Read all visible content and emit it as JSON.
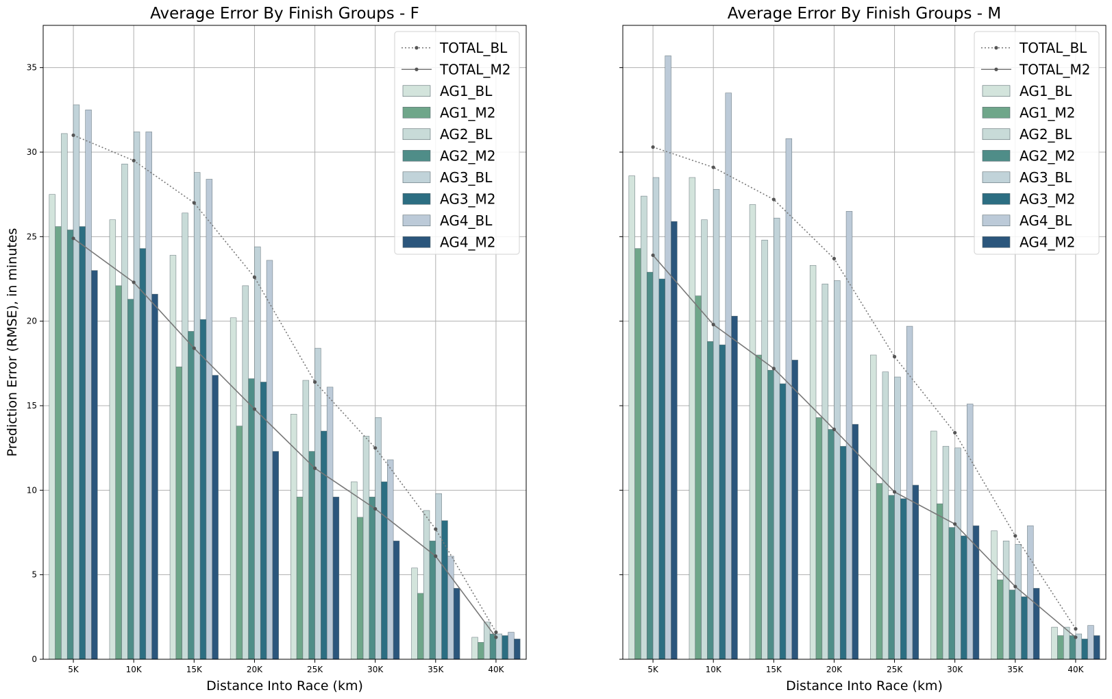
{
  "colors": {
    "AG1_BL": "#d3e4dc",
    "AG1_M2": "#6fa68a",
    "AG2_BL": "#c8dbd8",
    "AG2_M2": "#4f8d88",
    "AG3_BL": "#c1d3d9",
    "AG3_M2": "#2c6e82",
    "AG4_BL": "#bccad8",
    "AG4_M2": "#2b567c",
    "line": "#777777",
    "grid": "#b0b0b0"
  },
  "chart_data": [
    {
      "type": "bar",
      "title": "Average Error By Finish Groups - F",
      "xlabel": "Distance Into Race (km)",
      "ylabel": "Prediction Error (RMSE), in minutes",
      "categories": [
        "5K",
        "10K",
        "15K",
        "20K",
        "25K",
        "30K",
        "35K",
        "40K"
      ],
      "ylim": [
        0,
        37.5
      ],
      "yticks": [
        0,
        5,
        10,
        15,
        20,
        25,
        30,
        35
      ],
      "grid": true,
      "legend": "top-right",
      "series": [
        {
          "name": "AG1_BL",
          "values": [
            27.5,
            26.0,
            23.9,
            20.2,
            14.5,
            10.5,
            5.4,
            1.3
          ]
        },
        {
          "name": "AG1_M2",
          "values": [
            25.6,
            22.1,
            17.3,
            13.8,
            9.6,
            8.4,
            3.9,
            1.0
          ]
        },
        {
          "name": "AG2_BL",
          "values": [
            31.1,
            29.3,
            26.4,
            22.1,
            16.5,
            13.2,
            8.8,
            2.2
          ]
        },
        {
          "name": "AG2_M2",
          "values": [
            25.4,
            21.3,
            19.4,
            16.6,
            12.3,
            9.6,
            7.0,
            1.5
          ]
        },
        {
          "name": "AG3_BL",
          "values": [
            32.8,
            31.2,
            28.8,
            24.4,
            18.4,
            14.3,
            9.8,
            1.5
          ]
        },
        {
          "name": "AG3_M2",
          "values": [
            25.6,
            24.3,
            20.1,
            16.4,
            13.5,
            10.5,
            8.2,
            1.4
          ]
        },
        {
          "name": "AG4_BL",
          "values": [
            32.5,
            31.2,
            28.4,
            23.6,
            16.1,
            11.8,
            6.1,
            1.6
          ]
        },
        {
          "name": "AG4_M2",
          "values": [
            23.0,
            21.6,
            16.8,
            12.3,
            9.6,
            7.0,
            4.2,
            1.2
          ]
        }
      ],
      "lines": [
        {
          "name": "TOTAL_BL",
          "style": "dotted",
          "values": [
            31.0,
            29.5,
            27.0,
            22.6,
            16.4,
            12.5,
            7.7,
            1.6
          ]
        },
        {
          "name": "TOTAL_M2",
          "style": "solid",
          "values": [
            24.9,
            22.3,
            18.4,
            14.8,
            11.3,
            8.9,
            6.1,
            1.3
          ]
        }
      ]
    },
    {
      "type": "bar",
      "title": "Average Error By Finish Groups - M",
      "xlabel": "Distance Into Race (km)",
      "ylabel": "",
      "categories": [
        "5K",
        "10K",
        "15K",
        "20K",
        "25K",
        "30K",
        "35K",
        "40K"
      ],
      "ylim": [
        0,
        37.5
      ],
      "yticks": [
        0,
        5,
        10,
        15,
        20,
        25,
        30,
        35
      ],
      "grid": true,
      "legend": "top-right",
      "series": [
        {
          "name": "AG1_BL",
          "values": [
            28.6,
            28.5,
            26.9,
            23.3,
            18.0,
            13.5,
            7.6,
            1.9
          ]
        },
        {
          "name": "AG1_M2",
          "values": [
            24.3,
            21.5,
            18.0,
            14.3,
            10.4,
            9.2,
            4.7,
            1.4
          ]
        },
        {
          "name": "AG2_BL",
          "values": [
            27.4,
            26.0,
            24.8,
            22.2,
            17.0,
            12.6,
            7.0,
            1.9
          ]
        },
        {
          "name": "AG2_M2",
          "values": [
            22.9,
            18.8,
            17.1,
            13.6,
            9.7,
            7.8,
            4.1,
            1.4
          ]
        },
        {
          "name": "AG3_BL",
          "values": [
            28.5,
            27.8,
            26.1,
            22.4,
            16.7,
            12.5,
            6.8,
            1.5
          ]
        },
        {
          "name": "AG3_M2",
          "values": [
            22.5,
            18.6,
            16.3,
            12.6,
            9.5,
            7.3,
            3.7,
            1.2
          ]
        },
        {
          "name": "AG4_BL",
          "values": [
            35.7,
            33.5,
            30.8,
            26.5,
            19.7,
            15.1,
            7.9,
            2.0
          ]
        },
        {
          "name": "AG4_M2",
          "values": [
            25.9,
            20.3,
            17.7,
            13.9,
            10.3,
            7.9,
            4.2,
            1.4
          ]
        }
      ],
      "lines": [
        {
          "name": "TOTAL_BL",
          "style": "dotted",
          "values": [
            30.3,
            29.1,
            27.2,
            23.7,
            17.9,
            13.4,
            7.3,
            1.8
          ]
        },
        {
          "name": "TOTAL_M2",
          "style": "solid",
          "values": [
            23.9,
            19.8,
            17.2,
            13.6,
            9.9,
            8.0,
            4.3,
            1.3
          ]
        }
      ]
    }
  ]
}
